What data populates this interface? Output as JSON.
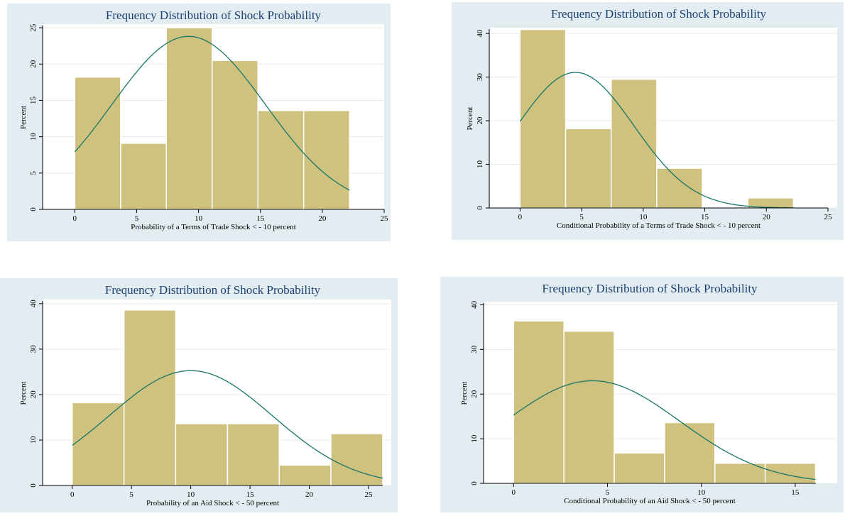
{
  "chart_data": [
    {
      "type": "histogram",
      "title": "Frequency Distribution of Shock Probability",
      "xlabel": "Probability of a Terms of Trade Shock < - 10 percent",
      "ylabel": "Percent",
      "bins": [
        0,
        3.7,
        7.4,
        11.1,
        14.8,
        18.5,
        22.2
      ],
      "values": [
        18.2,
        9.1,
        25,
        20.5,
        13.6,
        13.6
      ],
      "color": "#cfc27e",
      "normal_curve": {
        "mean": 9.2,
        "sd": 6.2,
        "color": "#17766a"
      },
      "xlim": [
        -2.6,
        25
      ],
      "xticks": [
        0,
        5,
        10,
        15,
        20,
        25
      ],
      "ylim": [
        0,
        25.3
      ],
      "yticks": [
        0,
        5,
        10,
        15,
        20,
        25
      ],
      "grid": true
    },
    {
      "type": "histogram",
      "title": "Frequency Distribution of Shock Probability",
      "xlabel": "Conditional Probability of a Terms of Trade Shock < - 10 percent",
      "ylabel": "Percent",
      "bins": [
        0,
        3.7,
        7.4,
        11.1,
        14.8,
        18.5,
        22.2
      ],
      "values": [
        40.9,
        18.2,
        29.5,
        9.1,
        0,
        2.3
      ],
      "color": "#cfc27e",
      "normal_curve": {
        "mean": 4.5,
        "sd": 4.75,
        "color": "#17766a"
      },
      "xlim": [
        -2.5,
        25
      ],
      "xticks": [
        0,
        5,
        10,
        15,
        20,
        25
      ],
      "ylim": [
        0,
        41
      ],
      "yticks": [
        0,
        10,
        20,
        30,
        40
      ],
      "grid": true
    },
    {
      "type": "histogram",
      "title": "Frequency Distribution of Shock Probability",
      "xlabel": "Probability of an Aid Shock < - 50 percent",
      "ylabel": "Percent",
      "bins": [
        0,
        4.37,
        8.73,
        13.1,
        17.47,
        21.83,
        26.2
      ],
      "values": [
        18.2,
        38.6,
        13.6,
        13.6,
        4.5,
        11.4
      ],
      "color": "#cfc27e",
      "normal_curve": {
        "mean": 10,
        "sd": 6.9,
        "color": "#17766a"
      },
      "xlim": [
        -2.5,
        26.2
      ],
      "xticks": [
        0,
        5,
        10,
        15,
        20,
        25
      ],
      "ylim": [
        0,
        40.6
      ],
      "yticks": [
        0,
        10,
        20,
        30,
        40
      ],
      "grid": true
    },
    {
      "type": "histogram",
      "title": "Frequency Distribution of Shock Probability",
      "xlabel": "Conditional Probability of an Aid Shock < - 50 percent",
      "ylabel": "Percent",
      "bins": [
        0,
        2.68,
        5.36,
        8.04,
        10.72,
        13.4,
        16.08
      ],
      "values": [
        36.4,
        34.1,
        6.8,
        13.6,
        4.5,
        4.5
      ],
      "color": "#cfc27e",
      "normal_curve": {
        "mean": 4.2,
        "sd": 4.65,
        "color": "#17766a"
      },
      "xlim": [
        -1.6,
        16.1
      ],
      "xticks": [
        0,
        5,
        10,
        15
      ],
      "ylim": [
        0,
        40.4
      ],
      "yticks": [
        0,
        10,
        20,
        30,
        40
      ],
      "grid": true
    }
  ]
}
